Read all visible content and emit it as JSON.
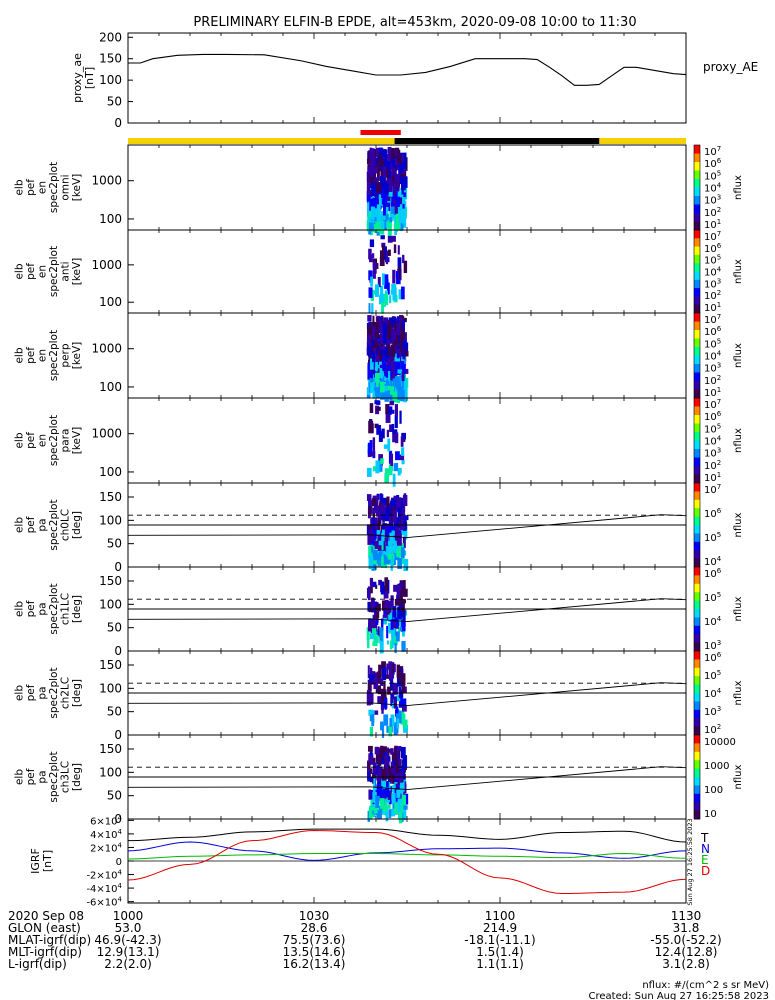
{
  "title": "PRELIMINARY ELFIN-B EPDE, alt=453km, 2020-09-08 10:00 to 11:30",
  "chart_data": [
    {
      "type": "line",
      "panel": "proxy_ae",
      "ylabel": "proxy_ae\n[nT]",
      "legend": "proxy_AE",
      "yticks": [
        "200",
        "150",
        "100",
        "50",
        "0"
      ],
      "ylim": [
        0,
        210
      ],
      "x_minutes": [
        0,
        2,
        4,
        8,
        12,
        16,
        22,
        28,
        32,
        36,
        40,
        44,
        48,
        52,
        56,
        60,
        62,
        64,
        66,
        68,
        70,
        72,
        74,
        76,
        78,
        80,
        82,
        84,
        86,
        88,
        90
      ],
      "values": [
        140,
        140,
        150,
        158,
        160,
        160,
        159,
        145,
        132,
        122,
        112,
        112,
        118,
        132,
        150,
        150,
        150,
        150,
        148,
        130,
        110,
        88,
        88,
        90,
        110,
        130,
        130,
        125,
        120,
        115,
        113
      ]
    },
    {
      "type": "heatmap",
      "panel": "energy-spectrogram",
      "ylabels": [
        "elb\npef\nen\nspec2plot\nomni\n[keV]",
        "elb\npef\nen\nspec2plot\nanti\n[keV]",
        "elb\npef\nen\nspec2plot\nperp\n[keV]",
        "elb\npef\nen\nspec2plot\npara\n[keV]"
      ],
      "yticks": [
        "1000",
        "100"
      ],
      "colorbar_label": "nflux",
      "colorbar_ticks": [
        "10^7",
        "10^6",
        "10^5",
        "10^4",
        "10^3",
        "10^2",
        "10^1"
      ]
    },
    {
      "type": "heatmap",
      "panel": "pitch-angle-spectrogram",
      "ylabels": [
        "elb\npef\npa\nspec2plot\nch0LC\n[deg]",
        "elb\npef\npa\nspec2plot\nch1LC\n[deg]",
        "elb\npef\npa\nspec2plot\nch2LC\n[deg]",
        "elb\npef\npa\nspec2plot\nch3LC\n[deg]"
      ],
      "yticks": [
        "150",
        "100",
        "50",
        "0"
      ],
      "colorbar_label": "nflux",
      "colorbar_ticks": [
        [
          "10^7",
          "10^6",
          "10^5",
          "10^4"
        ],
        [
          "10^6",
          "10^5",
          "10^4",
          "10^3"
        ],
        [
          "10^6",
          "10^5",
          "10^4",
          "10^3",
          "10^2"
        ],
        [
          "10000",
          "1000",
          "100",
          "10"
        ]
      ]
    },
    {
      "type": "line",
      "panel": "igrf",
      "ylabel": "IGRF\n[nT]",
      "yticks": [
        "6×10^4",
        "4×10^4",
        "2×10^4",
        "0",
        "-2×10^4",
        "-4×10^4",
        "-6×10^4"
      ],
      "ylim": [
        -62000,
        62000
      ],
      "series": [
        {
          "name": "T",
          "color": "#000000",
          "x": [
            0,
            10,
            20,
            30,
            40,
            50,
            60,
            70,
            80,
            90
          ],
          "values": [
            30000,
            35000,
            43000,
            47000,
            47000,
            38000,
            32000,
            42000,
            44000,
            28000
          ]
        },
        {
          "name": "N",
          "color": "#0000dd",
          "x": [
            0,
            10,
            20,
            30,
            40,
            50,
            60,
            70,
            80,
            90
          ],
          "values": [
            15000,
            28000,
            15000,
            1000,
            12000,
            18000,
            19000,
            12000,
            4000,
            15000
          ]
        },
        {
          "name": "E",
          "color": "#00bb00",
          "x": [
            0,
            10,
            20,
            30,
            40,
            50,
            60,
            70,
            80,
            90
          ],
          "values": [
            3000,
            7000,
            9000,
            11000,
            11000,
            9000,
            7000,
            5000,
            11000,
            4000
          ]
        },
        {
          "name": "D",
          "color": "#dd0000",
          "x": [
            0,
            10,
            20,
            30,
            40,
            50,
            60,
            70,
            80,
            90
          ],
          "values": [
            -28000,
            -5000,
            30000,
            45000,
            42000,
            10000,
            -25000,
            -48000,
            -46000,
            -27000
          ]
        }
      ]
    }
  ],
  "time_axis": {
    "ticks": [
      "1000",
      "1030",
      "1100",
      "1130"
    ],
    "row_labels": [
      "2020 Sep 08",
      "GLON (east)",
      "MLAT-igrf(dip)",
      "MLT-igrf(dip)",
      "L-igrf(dip)"
    ],
    "columns": [
      [
        "1000",
        "53.0",
        "46.9(-42.3)",
        "12.9(13.1)",
        "2.2(2.0)"
      ],
      [
        "1030",
        "28.6",
        "75.5(73.6)",
        "13.5(14.6)",
        "16.2(13.4)"
      ],
      [
        "1100",
        "214.9",
        "-18.1(-11.1)",
        "1.5(1.4)",
        "1.1(1.1)"
      ],
      [
        "1130",
        "31.8",
        "-55.0(-52.2)",
        "12.4(12.8)",
        "3.1(2.8)"
      ]
    ]
  },
  "footer": {
    "units": "nflux: #/(cm^2 s sr MeV)",
    "created": "Created: Sun Aug 27 16:25:58 2023",
    "side_stamp": "Sun Aug 27 16:25:58 2023"
  },
  "colors": {
    "sunlit": "#f5d000",
    "eclipse": "#000000",
    "science": "#ee0000"
  }
}
